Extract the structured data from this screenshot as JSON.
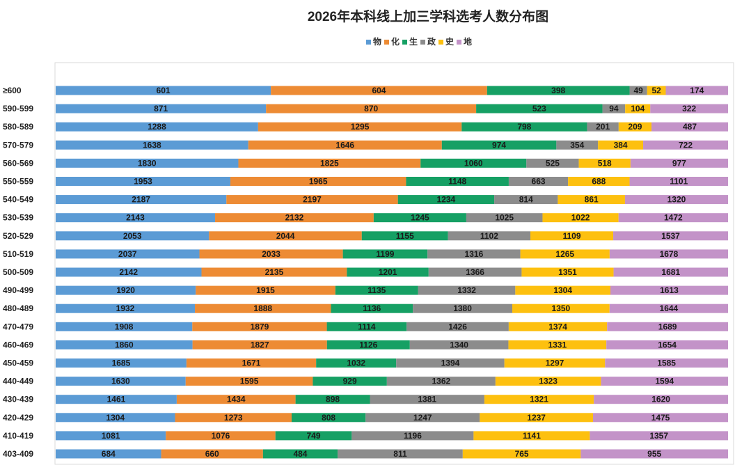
{
  "chart_data": {
    "type": "bar",
    "orientation": "horizontal",
    "stacked": "percent",
    "title": "2026年本科线上加三学科选考人数分布图",
    "xlabel": "",
    "ylabel": "",
    "legend_position": "top-center",
    "grid": false,
    "categories": [
      "≥600",
      "590-599",
      "580-589",
      "570-579",
      "560-569",
      "550-559",
      "540-549",
      "530-539",
      "520-529",
      "510-519",
      "500-509",
      "490-499",
      "480-489",
      "470-479",
      "460-469",
      "450-459",
      "440-449",
      "430-439",
      "420-429",
      "410-419",
      "403-409"
    ],
    "series": [
      {
        "name": "物",
        "color": "#5b9bd5",
        "values": [
          601,
          871,
          1288,
          1638,
          1830,
          1953,
          2187,
          2143,
          2053,
          2037,
          2142,
          1920,
          1932,
          1908,
          1860,
          1685,
          1630,
          1461,
          1304,
          1081,
          684
        ]
      },
      {
        "name": "化",
        "color": "#ed8b34",
        "values": [
          604,
          870,
          1295,
          1646,
          1825,
          1965,
          2197,
          2132,
          2044,
          2033,
          2135,
          1915,
          1888,
          1879,
          1827,
          1671,
          1595,
          1434,
          1273,
          1076,
          660
        ]
      },
      {
        "name": "生",
        "color": "#16a064",
        "values": [
          398,
          523,
          798,
          974,
          1060,
          1148,
          1234,
          1245,
          1155,
          1199,
          1201,
          1135,
          1136,
          1114,
          1126,
          1032,
          929,
          898,
          808,
          749,
          484
        ]
      },
      {
        "name": "政",
        "color": "#8c8c8c",
        "values": [
          49,
          94,
          201,
          354,
          525,
          663,
          814,
          1025,
          1102,
          1316,
          1366,
          1332,
          1380,
          1426,
          1340,
          1394,
          1362,
          1381,
          1247,
          1196,
          811
        ]
      },
      {
        "name": "史",
        "color": "#fdc00f",
        "values": [
          52,
          104,
          209,
          384,
          518,
          688,
          861,
          1022,
          1109,
          1265,
          1351,
          1304,
          1350,
          1374,
          1331,
          1297,
          1323,
          1321,
          1237,
          1141,
          765
        ]
      },
      {
        "name": "地",
        "color": "#c393c8",
        "values": [
          174,
          322,
          487,
          722,
          977,
          1101,
          1320,
          1472,
          1537,
          1678,
          1681,
          1613,
          1644,
          1689,
          1654,
          1585,
          1594,
          1620,
          1475,
          1357,
          955
        ]
      }
    ]
  }
}
